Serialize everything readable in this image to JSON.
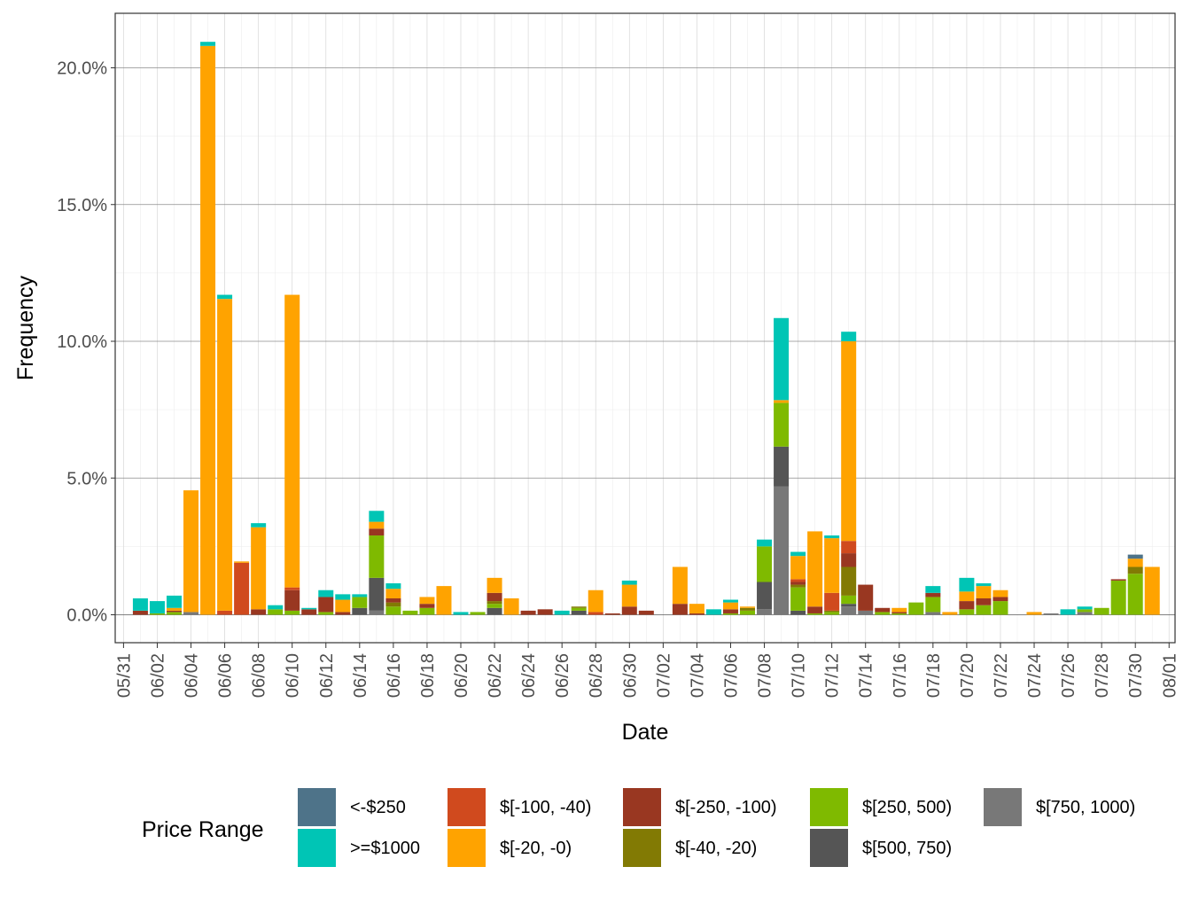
{
  "chart_data": {
    "type": "bar",
    "stacked": true,
    "xlabel": "Date",
    "ylabel": "Frequency",
    "x_tick_labels": [
      "05/31",
      "06/02",
      "06/04",
      "06/06",
      "06/08",
      "06/10",
      "06/12",
      "06/14",
      "06/16",
      "06/18",
      "06/20",
      "06/22",
      "06/24",
      "06/26",
      "06/28",
      "06/30",
      "07/02",
      "07/04",
      "07/06",
      "07/08",
      "07/10",
      "07/12",
      "07/14",
      "07/16",
      "07/18",
      "07/20",
      "07/22",
      "07/24",
      "07/26",
      "07/28",
      "07/30",
      "08/01"
    ],
    "y_tick_labels": [
      "0.0%",
      "5.0%",
      "10.0%",
      "15.0%",
      "20.0%"
    ],
    "y_ticks": [
      0,
      5,
      10,
      15,
      20
    ],
    "ylim": [
      -1,
      21.5
    ],
    "grid": true,
    "legend": {
      "title": "Price Range",
      "position": "bottom",
      "entries": [
        "<-$250",
        ">=$1000",
        "$[-100, -40)",
        "$[-20, -0)",
        "$[-250, -100)",
        "$[-40, -20)",
        "$[250, 500)",
        "$[500, 750)",
        "$[750, 1000)"
      ]
    },
    "categories": [
      "06/01",
      "06/02",
      "06/03",
      "06/04",
      "06/05",
      "06/06",
      "06/07",
      "06/08",
      "06/09",
      "06/10",
      "06/11",
      "06/12",
      "06/13",
      "06/14",
      "06/15",
      "06/16",
      "06/17",
      "06/18",
      "06/19",
      "06/20",
      "06/21",
      "06/22",
      "06/23",
      "06/24",
      "06/25",
      "06/26",
      "06/27",
      "06/28",
      "06/29",
      "06/30",
      "07/01",
      "07/02",
      "07/03",
      "07/04",
      "07/05",
      "07/06",
      "07/07",
      "07/08",
      "07/09",
      "07/10",
      "07/11",
      "07/12",
      "07/13",
      "07/14",
      "07/15",
      "07/16",
      "07/17",
      "07/18",
      "07/19",
      "07/20",
      "07/21",
      "07/22",
      "07/23",
      "07/24",
      "07/25",
      "07/26",
      "07/27",
      "07/28",
      "07/29",
      "07/30",
      "07/31"
    ],
    "series": [
      {
        "name": "$[750, 1000)",
        "color": "#787878",
        "values": [
          0,
          0,
          0,
          0.1,
          0,
          0,
          0,
          0,
          0,
          0,
          0,
          0,
          0,
          0,
          0.15,
          0,
          0,
          0,
          0,
          0,
          0,
          0,
          0,
          0,
          0,
          0,
          0,
          0,
          0,
          0,
          0,
          0,
          0,
          0,
          0,
          0,
          0,
          0.2,
          4.7,
          0,
          0,
          0,
          0.3,
          0.15,
          0,
          0,
          0,
          0.1,
          0,
          0,
          0,
          0,
          0,
          0,
          0.05,
          0,
          0.1,
          0,
          0,
          0,
          0
        ]
      },
      {
        "name": "$[500, 750)",
        "color": "#555555",
        "values": [
          0,
          0,
          0,
          0,
          0,
          0,
          0,
          0,
          0,
          0,
          0,
          0,
          0,
          0.25,
          1.2,
          0,
          0,
          0,
          0,
          0,
          0,
          0.25,
          0,
          0,
          0,
          0,
          0.15,
          0,
          0,
          0,
          0,
          0,
          0,
          0,
          0,
          0,
          0,
          1.0,
          1.45,
          0.15,
          0,
          0,
          0.1,
          0,
          0,
          0,
          0,
          0,
          0,
          0,
          0,
          0,
          0,
          0,
          0,
          0,
          0,
          0,
          0,
          0,
          0
        ]
      },
      {
        "name": "$[250, 500)",
        "color": "#7FBA00",
        "values": [
          0,
          0.05,
          0.1,
          0,
          0,
          0,
          0,
          0,
          0.2,
          0.15,
          0,
          0.1,
          0,
          0.4,
          1.55,
          0.3,
          0.15,
          0.25,
          0,
          0,
          0.1,
          0.15,
          0,
          0,
          0,
          0,
          0.1,
          0,
          0,
          0,
          0,
          0,
          0,
          0,
          0,
          0.05,
          0.15,
          1.3,
          1.6,
          0.85,
          0.05,
          0.1,
          0.3,
          0,
          0.1,
          0.05,
          0.45,
          0.55,
          0,
          0.2,
          0.35,
          0.5,
          0,
          0,
          0,
          0,
          0.1,
          0.25,
          1.25,
          1.5,
          0
        ]
      },
      {
        "name": "$[-40, -20)",
        "color": "#827A04",
        "values": [
          0,
          0,
          0,
          0,
          0,
          0,
          0,
          0,
          0,
          0,
          0,
          0,
          0,
          0,
          0,
          0.15,
          0,
          0,
          0,
          0,
          0,
          0.1,
          0,
          0,
          0,
          0,
          0.05,
          0,
          0,
          0,
          0,
          0,
          0,
          0,
          0,
          0,
          0.1,
          0,
          0,
          0.1,
          0,
          0.05,
          1.05,
          0,
          0,
          0,
          0,
          0,
          0,
          0,
          0,
          0,
          0,
          0,
          0,
          0,
          0,
          0,
          0,
          0.25,
          0
        ]
      },
      {
        "name": "$[-250, -100)",
        "color": "#993721",
        "values": [
          0.15,
          0,
          0.05,
          0,
          0,
          0,
          0,
          0.2,
          0,
          0.75,
          0.2,
          0.55,
          0.1,
          0,
          0.25,
          0.15,
          0,
          0.15,
          0,
          0,
          0,
          0.3,
          0,
          0.15,
          0.2,
          0,
          0,
          0,
          0.05,
          0.3,
          0.15,
          0,
          0.4,
          0.05,
          0,
          0.15,
          0,
          0,
          0,
          0.1,
          0.25,
          0,
          0.5,
          0.95,
          0.15,
          0.05,
          0,
          0.15,
          0,
          0.3,
          0.25,
          0.15,
          0,
          0,
          0,
          0,
          0,
          0,
          0.05,
          0,
          0
        ]
      },
      {
        "name": "$[-100, -40)",
        "color": "#D04A1E",
        "values": [
          0,
          0,
          0,
          0,
          0,
          0.15,
          1.9,
          0,
          0,
          0.1,
          0,
          0,
          0,
          0,
          0,
          0,
          0,
          0,
          0,
          0,
          0,
          0,
          0,
          0,
          0,
          0,
          0,
          0.1,
          0,
          0,
          0,
          0,
          0,
          0,
          0,
          0,
          0,
          0,
          0,
          0.1,
          0,
          0.65,
          0.45,
          0,
          0,
          0,
          0,
          0,
          0,
          0,
          0,
          0,
          0,
          0,
          0,
          0,
          0,
          0,
          0,
          0,
          0
        ]
      },
      {
        "name": "$[-20, -0)",
        "color": "#FFA300",
        "values": [
          0,
          0,
          0.1,
          4.45,
          20.8,
          11.4,
          0.05,
          3.0,
          0,
          10.7,
          0,
          0,
          0.45,
          0,
          0.25,
          0.35,
          0,
          0.25,
          1.05,
          0,
          0,
          0.55,
          0.6,
          0,
          0,
          0,
          0,
          0.8,
          0,
          0.8,
          0,
          0,
          1.35,
          0.35,
          0,
          0.25,
          0.05,
          0,
          0.1,
          0.85,
          2.75,
          2.0,
          7.3,
          0,
          0,
          0.15,
          0,
          0,
          0.1,
          0.35,
          0.45,
          0.25,
          0,
          0.1,
          0,
          0,
          0,
          0,
          0,
          0.3,
          1.75
        ]
      },
      {
        "name": ">=$1000",
        "color": "#00C5B5",
        "values": [
          0.45,
          0.45,
          0.45,
          0,
          0.15,
          0.15,
          0,
          0.15,
          0.15,
          0,
          0.05,
          0.25,
          0.2,
          0.1,
          0.4,
          0.2,
          0,
          0,
          0,
          0.1,
          0,
          0,
          0,
          0,
          0,
          0.15,
          0,
          0,
          0,
          0.15,
          0,
          0,
          0,
          0,
          0.2,
          0.1,
          0,
          0.25,
          3.0,
          0.15,
          0,
          0.1,
          0.35,
          0,
          0,
          0,
          0,
          0.25,
          0,
          0.5,
          0.1,
          0,
          0,
          0,
          0,
          0.2,
          0.1,
          0,
          0,
          0,
          0
        ]
      },
      {
        "name": "<-$250",
        "color": "#4E7389",
        "values": [
          0,
          0,
          0,
          0,
          0,
          0,
          0,
          0,
          0,
          0,
          0,
          0,
          0,
          0,
          0,
          0,
          0,
          0,
          0,
          0,
          0,
          0,
          0,
          0,
          0,
          0,
          0,
          0,
          0,
          0,
          0,
          0,
          0,
          0,
          0,
          0,
          0,
          0,
          0,
          0,
          0,
          0,
          0,
          0,
          0,
          0,
          0,
          0,
          0,
          0,
          0,
          0,
          0,
          0,
          0,
          0,
          0,
          0,
          0,
          0.15,
          0
        ]
      }
    ]
  }
}
